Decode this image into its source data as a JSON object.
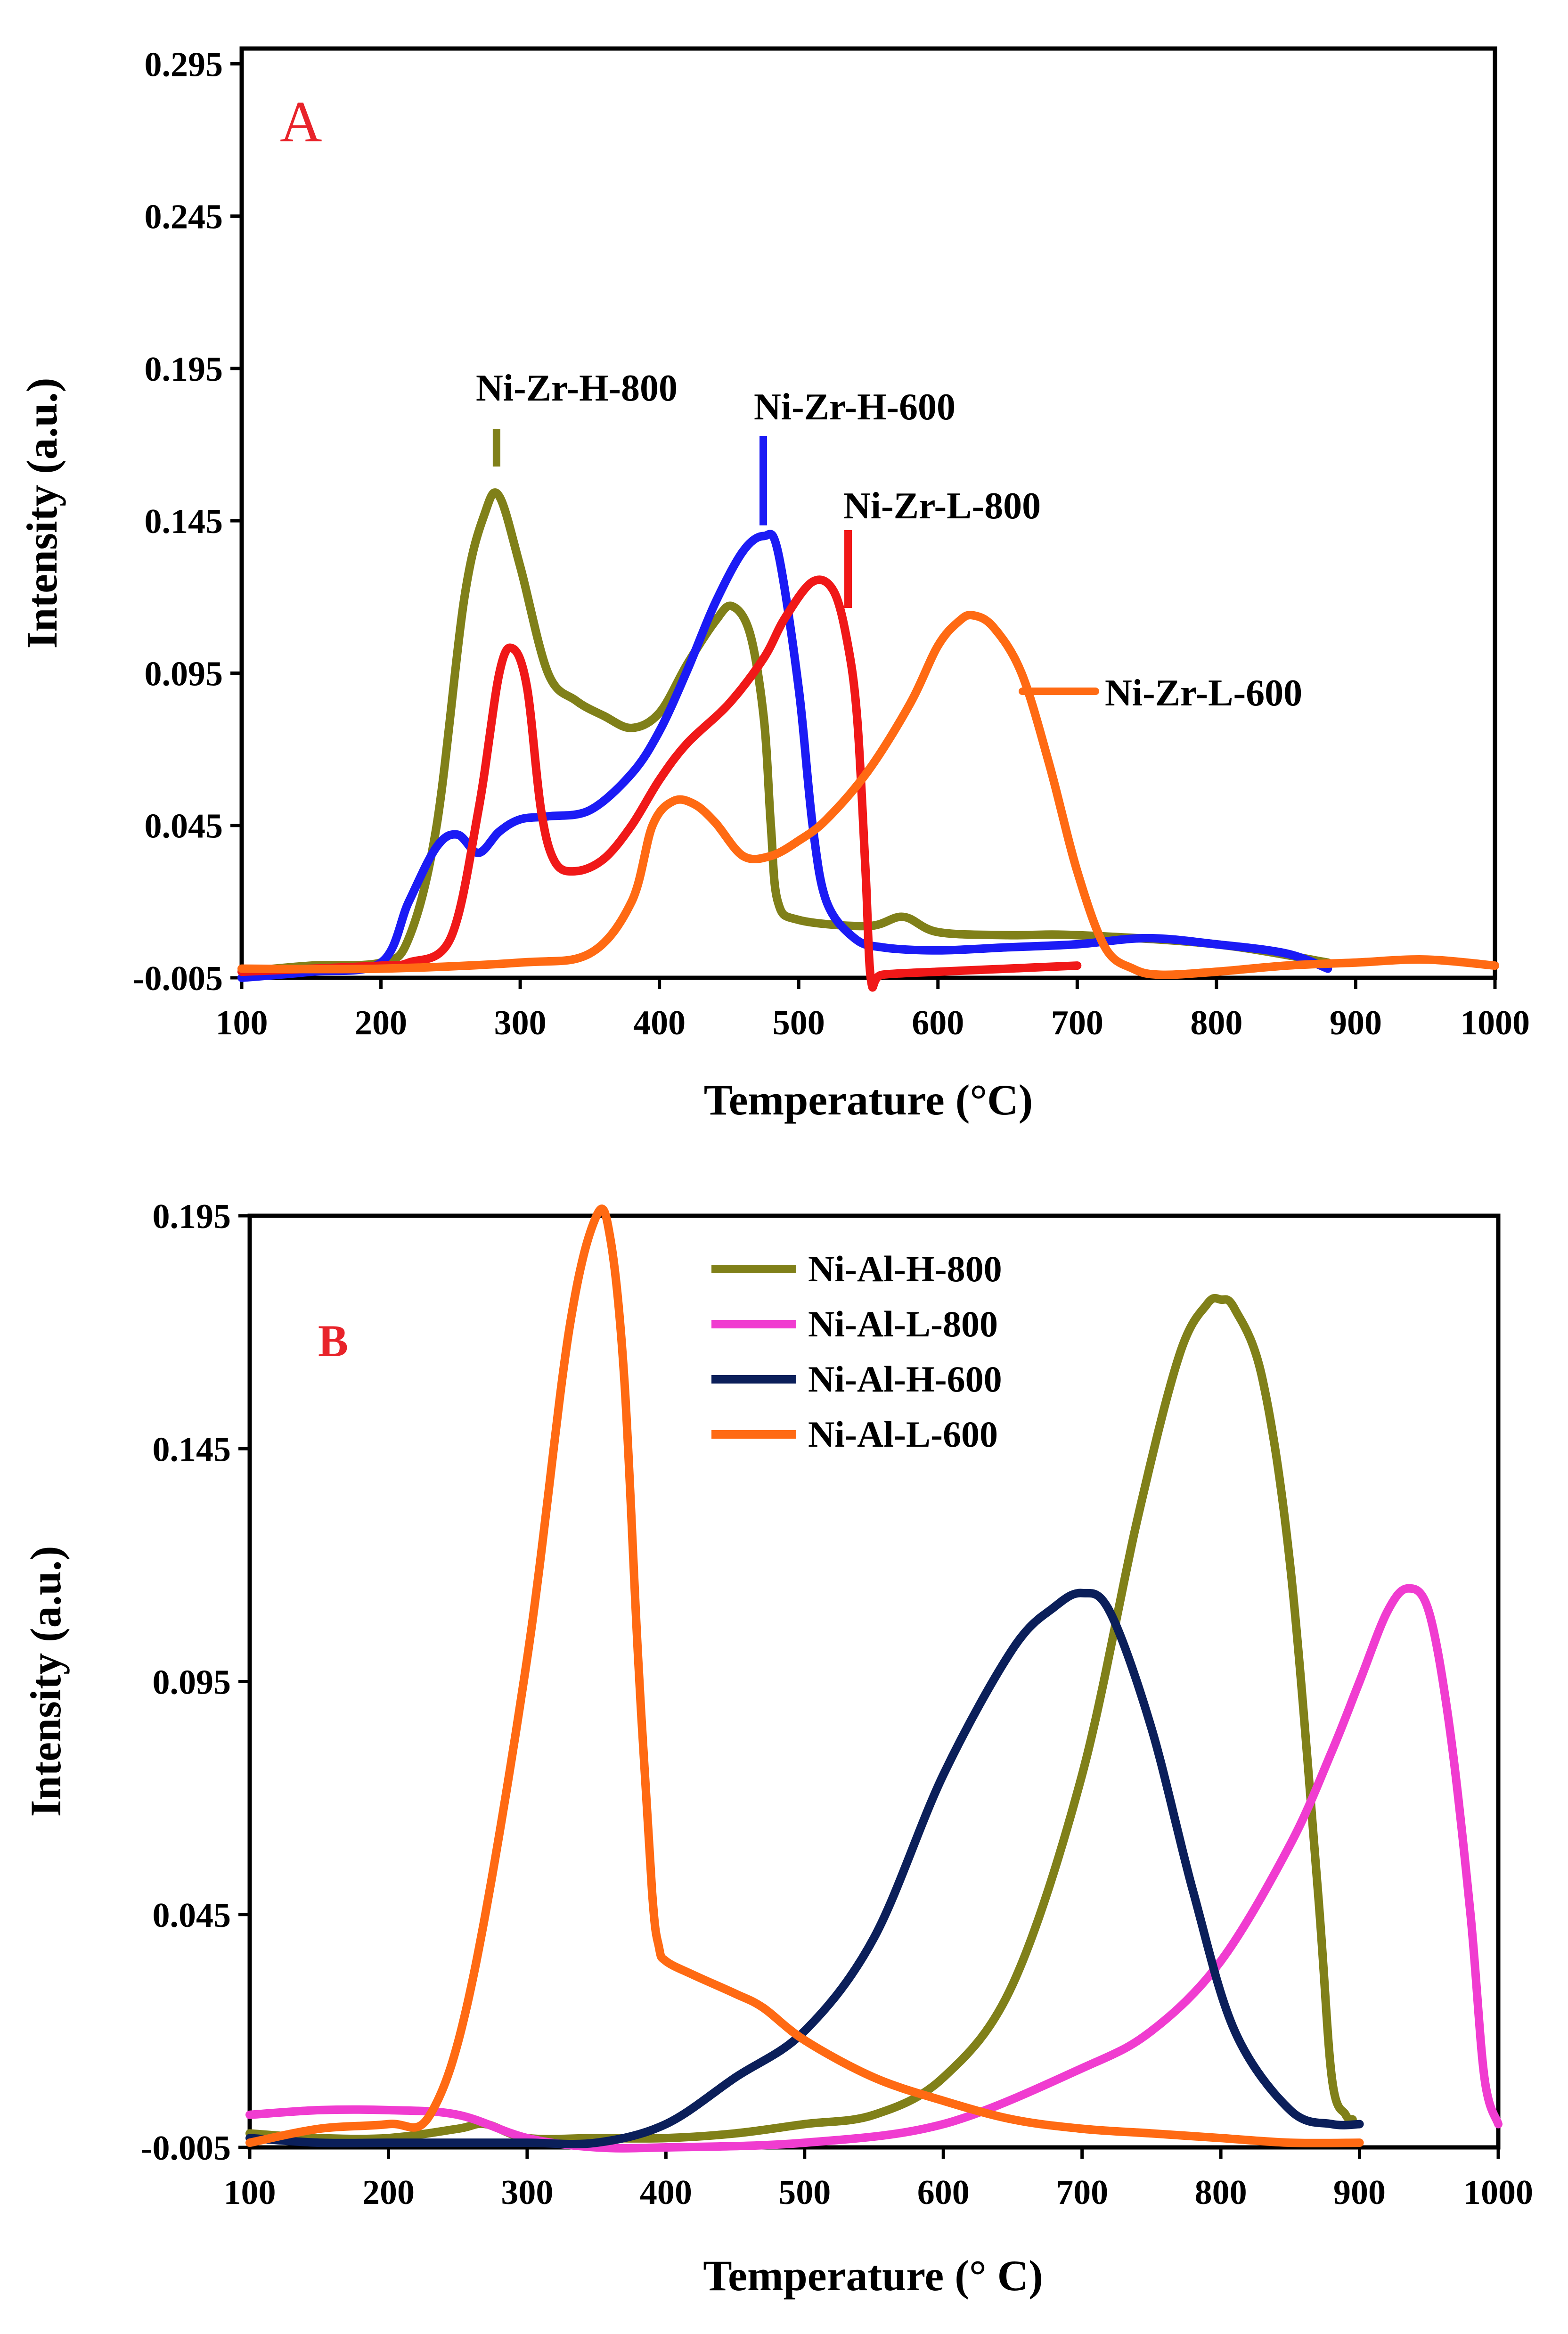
{
  "chart_data": [
    {
      "type": "line",
      "panel_label": "A",
      "panel_label_color": "#e8232a",
      "xlabel": "Temperature (°C)",
      "ylabel": "Intensity (a.u.)",
      "xlim": [
        100,
        1000
      ],
      "ylim": [
        -0.005,
        0.3
      ],
      "xticks": [
        "100",
        "200",
        "300",
        "400",
        "500",
        "600",
        "700",
        "800",
        "900",
        "1000"
      ],
      "yticks": [
        "-0.005",
        "0.045",
        "0.095",
        "0.145",
        "0.195",
        "0.245",
        "0.295"
      ],
      "grid": false,
      "legend": "inline annotations",
      "series": [
        {
          "name": "Ni-Zr-H-800",
          "color": "#808019",
          "x": [
            100,
            150,
            200,
            220,
            240,
            260,
            275,
            285,
            300,
            320,
            340,
            360,
            380,
            400,
            420,
            440,
            452,
            465,
            475,
            480,
            485,
            500,
            550,
            575,
            600,
            650,
            700,
            800,
            880
          ],
          "y": [
            -0.003,
            -0.001,
            0.0,
            0.008,
            0.045,
            0.12,
            0.148,
            0.153,
            0.13,
            0.095,
            0.086,
            0.081,
            0.077,
            0.082,
            0.098,
            0.112,
            0.117,
            0.108,
            0.08,
            0.045,
            0.02,
            0.014,
            0.012,
            0.015,
            0.01,
            0.009,
            0.009,
            0.006,
            0.0
          ]
        },
        {
          "name": "Ni-Zr-H-600",
          "color": "#1b1bf5",
          "x": [
            100,
            150,
            200,
            220,
            240,
            255,
            270,
            285,
            300,
            320,
            350,
            380,
            400,
            420,
            440,
            460,
            475,
            485,
            500,
            510,
            520,
            540,
            560,
            600,
            650,
            700,
            750,
            800,
            850,
            880
          ],
          "y": [
            -0.005,
            -0.003,
            0.0,
            0.02,
            0.038,
            0.042,
            0.036,
            0.043,
            0.047,
            0.048,
            0.05,
            0.062,
            0.076,
            0.096,
            0.118,
            0.135,
            0.14,
            0.135,
            0.09,
            0.045,
            0.02,
            0.008,
            0.005,
            0.004,
            0.005,
            0.006,
            0.008,
            0.006,
            0.003,
            -0.002
          ]
        },
        {
          "name": "Ni-Zr-L-800",
          "color": "#f01818",
          "x": [
            100,
            150,
            200,
            220,
            250,
            270,
            285,
            295,
            305,
            315,
            325,
            340,
            360,
            380,
            400,
            420,
            450,
            475,
            490,
            510,
            525,
            535,
            542,
            548,
            552,
            560,
            600,
            650,
            700
          ],
          "y": [
            -0.003,
            -0.002,
            -0.001,
            0.0,
            0.008,
            0.05,
            0.095,
            0.103,
            0.09,
            0.05,
            0.033,
            0.03,
            0.034,
            0.045,
            0.06,
            0.072,
            0.085,
            0.1,
            0.113,
            0.125,
            0.122,
            0.105,
            0.08,
            0.03,
            -0.006,
            -0.004,
            -0.003,
            -0.002,
            -0.001
          ]
        },
        {
          "name": "Ni-Zr-L-600",
          "color": "#ff6a13",
          "x": [
            100,
            200,
            300,
            350,
            380,
            395,
            410,
            425,
            440,
            460,
            480,
            500,
            520,
            550,
            580,
            600,
            615,
            625,
            640,
            660,
            680,
            700,
            720,
            740,
            760,
            800,
            850,
            900,
            950,
            1000
          ],
          "y": [
            -0.002,
            -0.002,
            0.0,
            0.003,
            0.02,
            0.045,
            0.053,
            0.052,
            0.046,
            0.035,
            0.035,
            0.04,
            0.047,
            0.063,
            0.085,
            0.104,
            0.112,
            0.114,
            0.11,
            0.095,
            0.065,
            0.03,
            0.005,
            -0.002,
            -0.004,
            -0.003,
            -0.001,
            0.0,
            0.001,
            -0.001
          ]
        }
      ],
      "annotations": [
        {
          "text": "Ni-Zr-H-800",
          "series": "Ni-Zr-H-800",
          "x": 283
        },
        {
          "text": "Ni-Zr-H-600",
          "series": "Ni-Zr-H-600",
          "x": 475
        },
        {
          "text": "Ni-Zr-L-800",
          "series": "Ni-Zr-L-800",
          "x": 535
        },
        {
          "text": "Ni-Zr-L-600",
          "series": "Ni-Zr-L-600",
          "x": 700
        }
      ]
    },
    {
      "type": "line",
      "panel_label": "B",
      "panel_label_color": "#e8232a",
      "xlabel": "Temperature (° C)",
      "ylabel": "Intensity  (a.u.)",
      "xlim": [
        100,
        1000
      ],
      "ylim": [
        -0.005,
        0.195
      ],
      "xticks": [
        "100",
        "200",
        "300",
        "400",
        "500",
        "600",
        "700",
        "800",
        "900",
        "1000"
      ],
      "yticks": [
        "-0.005",
        "0.045",
        "0.095",
        "0.145",
        "0.195"
      ],
      "grid": false,
      "legend": "top-center",
      "series": [
        {
          "name": "Ni-Al-H-800",
          "color": "#808019",
          "x": [
            100,
            150,
            200,
            250,
            270,
            300,
            350,
            400,
            450,
            500,
            550,
            600,
            650,
            700,
            740,
            770,
            790,
            800,
            810,
            830,
            850,
            870,
            880,
            890,
            895
          ],
          "y": [
            -0.002,
            -0.003,
            -0.003,
            -0.001,
            0.0,
            -0.003,
            -0.003,
            -0.003,
            -0.002,
            0.0,
            0.002,
            0.01,
            0.03,
            0.075,
            0.13,
            0.165,
            0.176,
            0.177,
            0.175,
            0.16,
            0.12,
            0.05,
            0.01,
            0.002,
            0.001
          ]
        },
        {
          "name": "Ni-Al-L-800",
          "color": "#f03cd0",
          "x": [
            100,
            150,
            200,
            250,
            300,
            350,
            400,
            500,
            600,
            700,
            750,
            800,
            850,
            880,
            900,
            920,
            935,
            950,
            965,
            980,
            990,
            1000
          ],
          "y": [
            0.002,
            0.003,
            0.003,
            0.002,
            -0.003,
            -0.005,
            -0.005,
            -0.004,
            0.0,
            0.012,
            0.02,
            0.035,
            0.06,
            0.08,
            0.095,
            0.11,
            0.115,
            0.11,
            0.085,
            0.045,
            0.01,
            0.0
          ]
        },
        {
          "name": "Ni-Al-H-600",
          "color": "#0b1f5a",
          "x": [
            100,
            150,
            200,
            250,
            300,
            350,
            400,
            450,
            500,
            550,
            600,
            650,
            680,
            700,
            720,
            750,
            780,
            810,
            850,
            880,
            900
          ],
          "y": [
            -0.003,
            -0.004,
            -0.004,
            -0.004,
            -0.004,
            -0.004,
            0.0,
            0.01,
            0.02,
            0.04,
            0.075,
            0.102,
            0.111,
            0.114,
            0.11,
            0.085,
            0.05,
            0.02,
            0.003,
            0.0,
            0.0
          ]
        },
        {
          "name": "Ni-Al-L-600",
          "color": "#ff6a13",
          "x": [
            100,
            150,
            200,
            230,
            260,
            300,
            330,
            350,
            360,
            370,
            380,
            390,
            395,
            400,
            420,
            450,
            470,
            500,
            550,
            600,
            650,
            700,
            750,
            800,
            850,
            900
          ],
          "y": [
            -0.004,
            -0.001,
            0.0,
            0.002,
            0.03,
            0.1,
            0.17,
            0.195,
            0.19,
            0.16,
            0.1,
            0.05,
            0.038,
            0.035,
            0.032,
            0.028,
            0.025,
            0.018,
            0.01,
            0.005,
            0.001,
            -0.001,
            -0.002,
            -0.003,
            -0.004,
            -0.004
          ]
        }
      ]
    }
  ]
}
